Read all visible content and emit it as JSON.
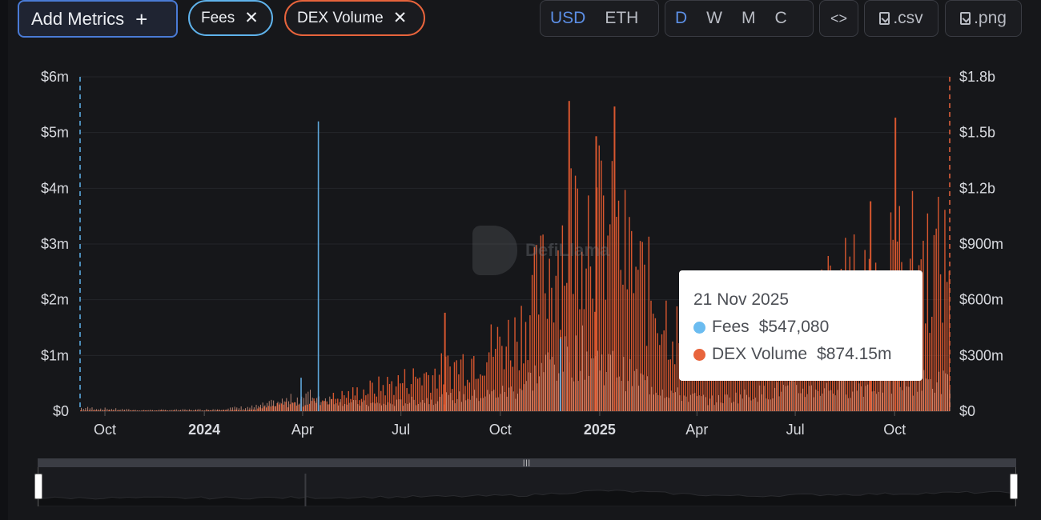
{
  "toolbar": {
    "add_metrics_label": "Add Metrics",
    "add_metrics_icon": "plus-icon",
    "chips": [
      {
        "label": "Fees",
        "color": "#5fb3ec",
        "icon": "close-icon"
      },
      {
        "label": "DEX Volume",
        "color": "#e8643c",
        "icon": "close-icon"
      }
    ],
    "currency_options": [
      "USD",
      "ETH"
    ],
    "currency_selected": "USD",
    "period_options": [
      "D",
      "W",
      "M",
      "C"
    ],
    "period_selected": "D",
    "embed_icon": "code-icon",
    "csv_label": ".csv",
    "png_label": ".png",
    "download_icon": "download-file-icon"
  },
  "watermark": {
    "text": "DefiLlama"
  },
  "tooltip": {
    "date": "21 Nov 2025",
    "rows": [
      {
        "name": "Fees",
        "value": "$547,080",
        "color": "#6bbcf0"
      },
      {
        "name": "DEX Volume",
        "value": "$874.15m",
        "color": "#e8643c"
      }
    ]
  },
  "chart_data": {
    "type": "bar",
    "x_ticks": [
      {
        "label": "Oct",
        "date": "2023-10-01",
        "bold": false
      },
      {
        "label": "2024",
        "date": "2024-01-01",
        "bold": true
      },
      {
        "label": "Apr",
        "date": "2024-04-01",
        "bold": false
      },
      {
        "label": "Jul",
        "date": "2024-07-01",
        "bold": false
      },
      {
        "label": "Oct",
        "date": "2024-10-01",
        "bold": false
      },
      {
        "label": "2025",
        "date": "2025-01-01",
        "bold": true
      },
      {
        "label": "Apr",
        "date": "2025-04-01",
        "bold": false
      },
      {
        "label": "Jul",
        "date": "2025-07-01",
        "bold": false
      },
      {
        "label": "Oct",
        "date": "2025-10-01",
        "bold": false
      }
    ],
    "x_range": [
      "2023-09-08",
      "2025-11-21"
    ],
    "y_left": {
      "ticks": [
        "$0",
        "$1m",
        "$2m",
        "$3m",
        "$4m",
        "$5m",
        "$6m"
      ],
      "range": [
        0,
        6000000
      ]
    },
    "y_right": {
      "ticks": [
        "$0",
        "$300m",
        "$600m",
        "$900m",
        "$1.2b",
        "$1.5b",
        "$1.8b"
      ],
      "range": [
        0,
        1800000000
      ]
    },
    "grid": true,
    "series": [
      {
        "name": "DEX Volume",
        "axis": "right",
        "color": "#e8643c",
        "points": [
          {
            "date": "2023-09-15",
            "value": 5000000
          },
          {
            "date": "2023-11-01",
            "value": 3000000
          },
          {
            "date": "2024-01-01",
            "value": 4000000
          },
          {
            "date": "2024-02-15",
            "value": 10000000
          },
          {
            "date": "2024-03-15",
            "value": 40000000
          },
          {
            "date": "2024-04-15",
            "value": 60000000
          },
          {
            "date": "2024-05-15",
            "value": 100000000
          },
          {
            "date": "2024-06-15",
            "value": 150000000
          },
          {
            "date": "2024-07-15",
            "value": 200000000
          },
          {
            "date": "2024-08-15",
            "value": 250000000
          },
          {
            "date": "2024-09-15",
            "value": 350000000
          },
          {
            "date": "2024-10-15",
            "value": 450000000
          },
          {
            "date": "2024-11-15",
            "value": 850000000
          },
          {
            "date": "2024-12-15",
            "value": 1200000000
          },
          {
            "date": "2025-01-15",
            "value": 1000000000
          },
          {
            "date": "2025-02-15",
            "value": 700000000
          },
          {
            "date": "2025-03-15",
            "value": 450000000
          },
          {
            "date": "2025-04-15",
            "value": 300000000
          },
          {
            "date": "2025-05-15",
            "value": 450000000
          },
          {
            "date": "2025-06-15",
            "value": 550000000
          },
          {
            "date": "2025-07-15",
            "value": 600000000
          },
          {
            "date": "2025-08-15",
            "value": 700000000
          },
          {
            "date": "2025-09-15",
            "value": 800000000
          },
          {
            "date": "2025-10-15",
            "value": 900000000
          },
          {
            "date": "2025-11-21",
            "value": 874150000
          }
        ],
        "spikes": [
          {
            "date": "2024-08-10",
            "value": 530000000
          },
          {
            "date": "2024-12-03",
            "value": 1670000000
          },
          {
            "date": "2024-12-28",
            "value": 1480000000
          },
          {
            "date": "2025-01-14",
            "value": 1640000000
          },
          {
            "date": "2025-09-08",
            "value": 1130000000
          },
          {
            "date": "2025-10-01",
            "value": 1580000000
          }
        ]
      },
      {
        "name": "Fees",
        "axis": "left",
        "color": "#6bbcf0",
        "points": [
          {
            "date": "2023-09-15",
            "value": 60000
          },
          {
            "date": "2023-11-01",
            "value": 20000
          },
          {
            "date": "2024-01-01",
            "value": 30000
          },
          {
            "date": "2024-02-15",
            "value": 80000
          },
          {
            "date": "2024-03-15",
            "value": 200000
          },
          {
            "date": "2024-04-05",
            "value": 300000
          },
          {
            "date": "2024-05-15",
            "value": 150000
          },
          {
            "date": "2024-06-15",
            "value": 130000
          },
          {
            "date": "2024-07-15",
            "value": 200000
          },
          {
            "date": "2024-08-15",
            "value": 250000
          },
          {
            "date": "2024-09-15",
            "value": 300000
          },
          {
            "date": "2024-10-15",
            "value": 400000
          },
          {
            "date": "2024-11-15",
            "value": 900000
          },
          {
            "date": "2024-12-15",
            "value": 1100000
          },
          {
            "date": "2025-01-15",
            "value": 800000
          },
          {
            "date": "2025-02-15",
            "value": 500000
          },
          {
            "date": "2025-03-15",
            "value": 300000
          },
          {
            "date": "2025-04-15",
            "value": 200000
          },
          {
            "date": "2025-05-15",
            "value": 300000
          },
          {
            "date": "2025-06-15",
            "value": 400000
          },
          {
            "date": "2025-07-15",
            "value": 400000
          },
          {
            "date": "2025-08-15",
            "value": 450000
          },
          {
            "date": "2025-09-15",
            "value": 500000
          },
          {
            "date": "2025-10-15",
            "value": 550000
          },
          {
            "date": "2025-11-21",
            "value": 547080
          }
        ],
        "spikes": [
          {
            "date": "2024-03-30",
            "value": 600000
          },
          {
            "date": "2024-04-15",
            "value": 5200000
          },
          {
            "date": "2024-11-25",
            "value": 1300000
          }
        ]
      }
    ]
  }
}
